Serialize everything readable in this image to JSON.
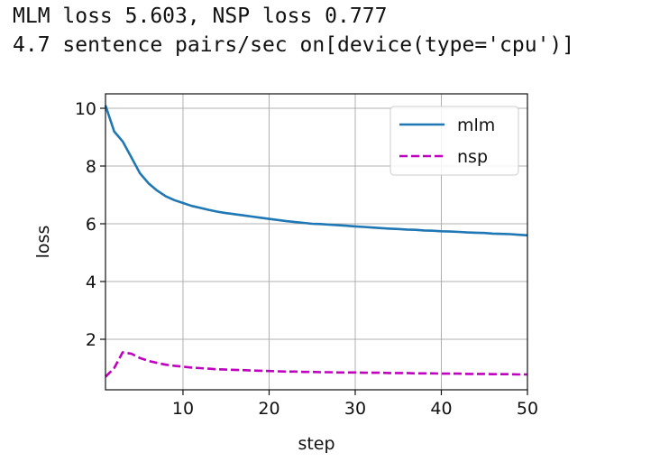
{
  "output": {
    "line1": "MLM loss 5.603, NSP loss 0.777",
    "line2": "4.7 sentence pairs/sec on[device(type='cpu')]"
  },
  "chart_data": {
    "type": "line",
    "xlabel": "step",
    "ylabel": "loss",
    "xlim": [
      1,
      50
    ],
    "ylim": [
      0.25,
      10.5
    ],
    "xticks": [
      10,
      20,
      30,
      40,
      50
    ],
    "yticks": [
      2,
      4,
      6,
      8,
      10
    ],
    "grid": true,
    "legend_position": "top-right",
    "x": [
      1,
      2,
      3,
      4,
      5,
      6,
      7,
      8,
      9,
      10,
      11,
      12,
      13,
      14,
      15,
      16,
      17,
      18,
      19,
      20,
      21,
      22,
      23,
      24,
      25,
      26,
      27,
      28,
      29,
      30,
      31,
      32,
      33,
      34,
      35,
      36,
      37,
      38,
      39,
      40,
      41,
      42,
      43,
      44,
      45,
      46,
      47,
      48,
      49,
      50
    ],
    "series": [
      {
        "name": "mlm",
        "color": "#1f77b4",
        "style": "solid",
        "values": [
          10.1,
          9.2,
          8.85,
          8.3,
          7.75,
          7.4,
          7.15,
          6.95,
          6.82,
          6.72,
          6.62,
          6.55,
          6.48,
          6.42,
          6.37,
          6.33,
          6.29,
          6.25,
          6.21,
          6.17,
          6.13,
          6.09,
          6.06,
          6.03,
          6.0,
          5.99,
          5.97,
          5.95,
          5.93,
          5.91,
          5.89,
          5.87,
          5.85,
          5.83,
          5.82,
          5.8,
          5.79,
          5.77,
          5.76,
          5.74,
          5.73,
          5.72,
          5.7,
          5.69,
          5.68,
          5.66,
          5.65,
          5.64,
          5.62,
          5.6
        ]
      },
      {
        "name": "nsp",
        "color": "#bf00bf",
        "style": "dashed",
        "values": [
          0.7,
          1.0,
          1.55,
          1.5,
          1.35,
          1.25,
          1.18,
          1.12,
          1.08,
          1.05,
          1.02,
          1.0,
          0.98,
          0.96,
          0.95,
          0.94,
          0.93,
          0.92,
          0.91,
          0.9,
          0.89,
          0.88,
          0.88,
          0.87,
          0.87,
          0.86,
          0.86,
          0.85,
          0.85,
          0.85,
          0.84,
          0.84,
          0.84,
          0.83,
          0.83,
          0.83,
          0.82,
          0.82,
          0.82,
          0.81,
          0.81,
          0.81,
          0.8,
          0.8,
          0.8,
          0.79,
          0.79,
          0.79,
          0.78,
          0.78
        ]
      }
    ]
  }
}
